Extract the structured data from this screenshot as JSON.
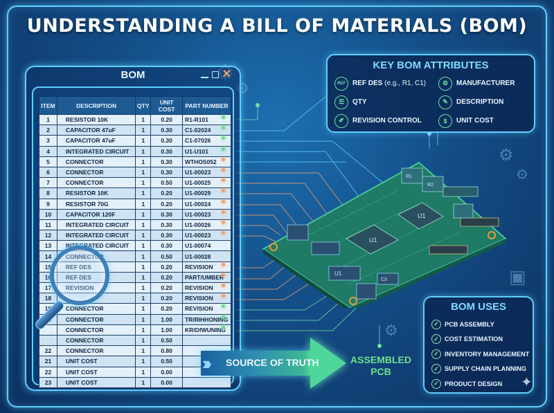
{
  "title": "UNDERSTANDING A BILL OF MATERIALS (BOM)",
  "bom_window": {
    "title": "BOM",
    "controls": [
      "minimize-icon",
      "maximize-icon",
      "close-icon"
    ],
    "columns": [
      "ITEM",
      "DESCRIPTION",
      "QTY",
      "UNIT COST",
      "PART NUMBER"
    ],
    "rows": [
      {
        "item": "1",
        "description": "RESISTOR 10K",
        "qty": "1",
        "unit_cost": "0.20",
        "part_number": "R1-R101",
        "dot": "green"
      },
      {
        "item": "2",
        "description": "CAPACITOR 47uF",
        "qty": "1",
        "unit_cost": "0.30",
        "part_number": "C1-02024",
        "dot": "green"
      },
      {
        "item": "3",
        "description": "CAPACITOR 47uF",
        "qty": "1",
        "unit_cost": "0.30",
        "part_number": "C1-07026",
        "dot": "green"
      },
      {
        "item": "4",
        "description": "INTEGRATED CIRCUIT",
        "qty": "1",
        "unit_cost": "0.30",
        "part_number": "U1-U101",
        "dot": "green"
      },
      {
        "item": "5",
        "description": "CONNECTOR",
        "qty": "1",
        "unit_cost": "0.30",
        "part_number": "WTHOS052",
        "dot": "orange"
      },
      {
        "item": "6",
        "description": "CONNECTOR",
        "qty": "1",
        "unit_cost": "0.30",
        "part_number": "U1-00023",
        "dot": "orange"
      },
      {
        "item": "7",
        "description": "CONNECTOR",
        "qty": "1",
        "unit_cost": "0.50",
        "part_number": "U1-00025",
        "dot": "orange"
      },
      {
        "item": "8",
        "description": "RESISTOR 10K",
        "qty": "1",
        "unit_cost": "0.20",
        "part_number": "U1-00029",
        "dot": "orange"
      },
      {
        "item": "9",
        "description": "RESISTOR 70G",
        "qty": "1",
        "unit_cost": "0.20",
        "part_number": "U1-00024",
        "dot": "orange"
      },
      {
        "item": "10",
        "description": "CAPACITOR 120F",
        "qty": "1",
        "unit_cost": "0.30",
        "part_number": "U1-00023",
        "dot": "orange"
      },
      {
        "item": "11",
        "description": "INTEGRATED CIRCUIT",
        "qty": "1",
        "unit_cost": "0.30",
        "part_number": "U1-00026",
        "dot": "orange"
      },
      {
        "item": "12",
        "description": "INTEGRATED CIRCUIT",
        "qty": "1",
        "unit_cost": "0.30",
        "part_number": "U1-00023",
        "dot": "orange"
      },
      {
        "item": "13",
        "description": "INTEGRATED CIRCUIT",
        "qty": "1",
        "unit_cost": "0.30",
        "part_number": "U1-00074",
        "dot": ""
      },
      {
        "item": "14",
        "description": "CONNECTOR",
        "qty": "1",
        "unit_cost": "0.50",
        "part_number": "U1-00028",
        "dot": ""
      },
      {
        "item": "15",
        "description": "REF DES",
        "qty": "1",
        "unit_cost": "0.20",
        "part_number": "REVISION",
        "dot": "orange"
      },
      {
        "item": "16",
        "description": "REF DES",
        "qty": "1",
        "unit_cost": "0.20",
        "part_number": "PART/UMBER",
        "dot": "orange"
      },
      {
        "item": "17",
        "description": "REVISION",
        "qty": "1",
        "unit_cost": "0.20",
        "part_number": "REVISION",
        "dot": "orange"
      },
      {
        "item": "18",
        "description": "",
        "qty": "1",
        "unit_cost": "0.20",
        "part_number": "REVISION",
        "dot": "orange"
      },
      {
        "item": "19",
        "description": "CONNECTOR",
        "qty": "1",
        "unit_cost": "0.20",
        "part_number": "REVISION",
        "dot": "green"
      },
      {
        "item": "20",
        "description": "CONNECTOR",
        "qty": "1",
        "unit_cost": "1.00",
        "part_number": "TR/RIHHONING",
        "dot": "green"
      },
      {
        "item": "",
        "description": "CONNECTOR",
        "qty": "1",
        "unit_cost": "1.00",
        "part_number": "KR/DfWUNING",
        "dot": "green"
      },
      {
        "item": "",
        "description": "CONNECTOR",
        "qty": "1",
        "unit_cost": "0.50",
        "part_number": "",
        "dot": ""
      },
      {
        "item": "22",
        "description": "CONNECTOR",
        "qty": "1",
        "unit_cost": "0.80",
        "part_number": "",
        "dot": ""
      },
      {
        "item": "21",
        "description": "UNIT COST",
        "qty": "1",
        "unit_cost": "0.50",
        "part_number": "",
        "dot": ""
      },
      {
        "item": "22",
        "description": "UNIT COST",
        "qty": "1",
        "unit_cost": "0.00",
        "part_number": "",
        "dot": ""
      },
      {
        "item": "23",
        "description": "UNIT COST",
        "qty": "1",
        "unit_cost": "0.00",
        "part_number": "",
        "dot": ""
      }
    ]
  },
  "key_attributes": {
    "title": "KEY BOM ATTRIBUTES",
    "items": [
      {
        "label": "REF DES",
        "detail": " (e.g., R1, C1)",
        "icon": "ref-des-icon",
        "glyph": "REF"
      },
      {
        "label": "MANUFACTURER",
        "detail": "",
        "icon": "gear-icon",
        "glyph": "⚙"
      },
      {
        "label": "QTY",
        "detail": "",
        "icon": "list-icon",
        "glyph": "☰"
      },
      {
        "label": "DESCRIPTION",
        "detail": "",
        "icon": "document-icon",
        "glyph": "✎"
      },
      {
        "label": "REVISION CONTROL",
        "detail": "",
        "icon": "edit-icon",
        "glyph": "✐"
      },
      {
        "label": "UNIT COST",
        "detail": "",
        "icon": "dollar-icon",
        "glyph": "$"
      }
    ]
  },
  "uses": {
    "title": "BOM USES",
    "items": [
      "PCB ASSEMBLY",
      "COST ESTIMATION",
      "INVENTORY MANAGEMENT",
      "SUPPLY CHAIN PLANNING",
      "PRODUCT DESIGN"
    ]
  },
  "flow": {
    "arrow_label": "SOURCE OF TRUTH",
    "target_label_line1": "ASSEMBLED",
    "target_label_line2": "PCB"
  },
  "pcb_labels": [
    "R1",
    "R2",
    "U1",
    "U1",
    "C1",
    "R1",
    "C3",
    "U1"
  ],
  "colors": {
    "background": "#14508a",
    "accent_cyan": "#5fd0ff",
    "accent_green": "#6fe08e",
    "attr_title": "#7fdcff",
    "close_orange": "#f3a46b",
    "pcb_green": "#1f7a66"
  }
}
